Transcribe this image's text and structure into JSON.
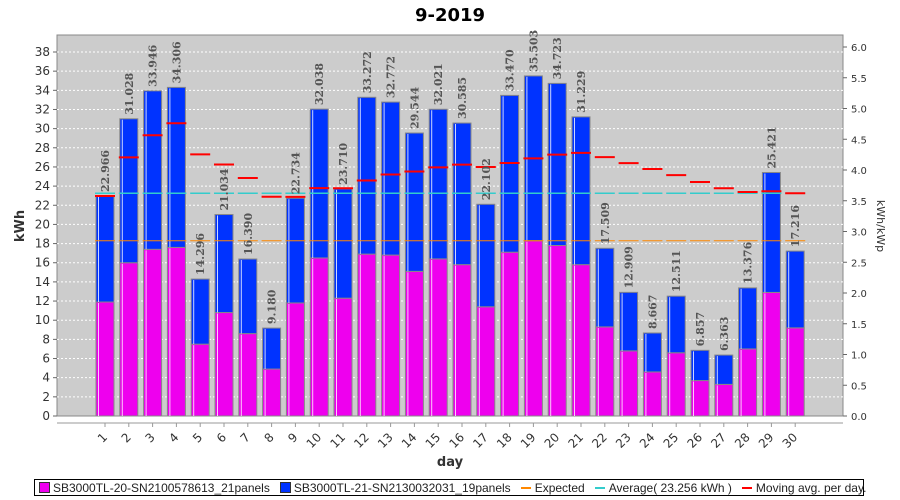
{
  "chart_data": {
    "type": "bar",
    "stacked": true,
    "title": "9-2019",
    "xlabel": "day",
    "ylabel": "kWh",
    "y2label": "kWh/kWp",
    "ylim": [
      0,
      38
    ],
    "yticks": [
      0,
      2,
      4,
      6,
      8,
      10,
      12,
      14,
      16,
      18,
      20,
      22,
      24,
      26,
      28,
      30,
      32,
      34,
      36,
      38
    ],
    "y2lim": [
      0,
      6.0
    ],
    "y2ticks": [
      "0.0",
      "0.5",
      "1.0",
      "1.5",
      "2.0",
      "2.5",
      "3.0",
      "3.5",
      "4.0",
      "4.5",
      "5.0",
      "5.5",
      "6.0"
    ],
    "grid": true,
    "legend_placement": "bottom",
    "categories": [
      "1",
      "2",
      "3",
      "4",
      "5",
      "6",
      "7",
      "8",
      "9",
      "10",
      "11",
      "12",
      "13",
      "14",
      "15",
      "16",
      "17",
      "18",
      "19",
      "20",
      "21",
      "22",
      "23",
      "24",
      "25",
      "26",
      "27",
      "28",
      "29",
      "30"
    ],
    "totals": [
      "22.966",
      "31.028",
      "33.946",
      "34.306",
      "14.296",
      "21.034",
      "16.390",
      "9.180",
      "22.734",
      "32.038",
      "23.710",
      "33.272",
      "32.772",
      "29.544",
      "32.021",
      "30.585",
      "22.102",
      "33.470",
      "35.503",
      "34.723",
      "31.229",
      "17.509",
      "12.909",
      "8.667",
      "12.511",
      "6.857",
      "6.363",
      "13.376",
      "25.421",
      "17.216"
    ],
    "series": [
      {
        "name": "SB3000TL-20-SN2100578613_21panels",
        "color": "#ee00ee",
        "values": [
          11.9,
          16.0,
          17.4,
          17.6,
          7.5,
          10.8,
          8.6,
          4.9,
          11.8,
          16.5,
          12.3,
          16.9,
          16.8,
          15.1,
          16.4,
          15.8,
          11.4,
          17.1,
          18.3,
          17.8,
          15.8,
          9.3,
          6.8,
          4.6,
          6.6,
          3.7,
          3.3,
          7.0,
          12.9,
          9.2
        ]
      },
      {
        "name": "SB3000TL-21-SN2130032031_19panels",
        "color": "#0033ff",
        "values": [
          11.066,
          15.028,
          16.546,
          16.706,
          6.796,
          10.234,
          7.79,
          4.28,
          10.934,
          15.538,
          11.41,
          16.372,
          15.972,
          14.444,
          15.621,
          14.785,
          10.702,
          16.37,
          17.203,
          16.923,
          15.429,
          8.209,
          6.109,
          4.067,
          5.911,
          3.157,
          3.063,
          6.376,
          12.521,
          8.016
        ]
      }
    ],
    "lines": {
      "expected": {
        "name": "Expected",
        "color": "#ff8800",
        "value": 18.3
      },
      "average": {
        "name": "Average( 23.256 kWh )",
        "color": "#33cccc",
        "value": 23.256
      },
      "moving_avg": {
        "name": "Moving avg. per day.",
        "color": "#ff0000",
        "values": [
          22.97,
          27.0,
          29.31,
          30.56,
          27.31,
          26.26,
          24.85,
          22.89,
          22.88,
          23.79,
          23.78,
          24.58,
          25.21,
          25.52,
          25.95,
          26.24,
          26.0,
          26.41,
          26.89,
          27.28,
          27.47,
          27.02,
          26.4,
          25.78,
          25.14,
          24.43,
          23.77,
          23.39,
          23.46,
          23.26
        ]
      }
    }
  }
}
